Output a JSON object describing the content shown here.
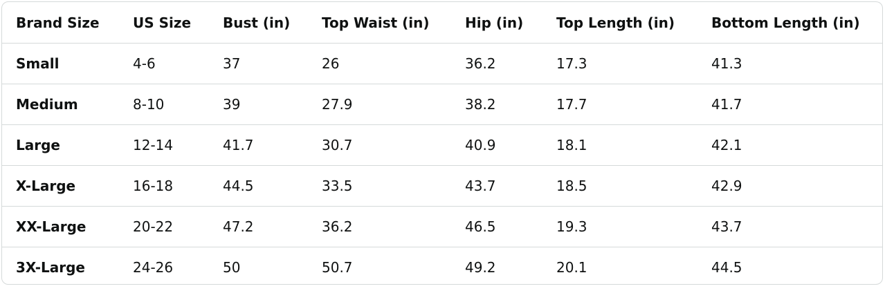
{
  "table": {
    "header": [
      "Brand Size",
      "US Size",
      "Bust (in)",
      "Top Waist (in)",
      "Hip (in)",
      "Top Length (in)",
      "Bottom Length (in)"
    ],
    "rows": [
      [
        "Small",
        "4-6",
        "37",
        "26",
        "36.2",
        "17.3",
        "41.3"
      ],
      [
        "Medium",
        "8-10",
        "39",
        "27.9",
        "38.2",
        "17.7",
        "41.7"
      ],
      [
        "Large",
        "12-14",
        "41.7",
        "30.7",
        "40.9",
        "18.1",
        "42.1"
      ],
      [
        "X-Large",
        "16-18",
        "44.5",
        "33.5",
        "43.7",
        "18.5",
        "42.9"
      ],
      [
        "XX-Large",
        "20-22",
        "47.2",
        "36.2",
        "46.5",
        "19.3",
        "43.7"
      ],
      [
        "3X-Large",
        "24-26",
        "50",
        "50.7",
        "49.2",
        "20.1",
        "44.5"
      ]
    ]
  }
}
